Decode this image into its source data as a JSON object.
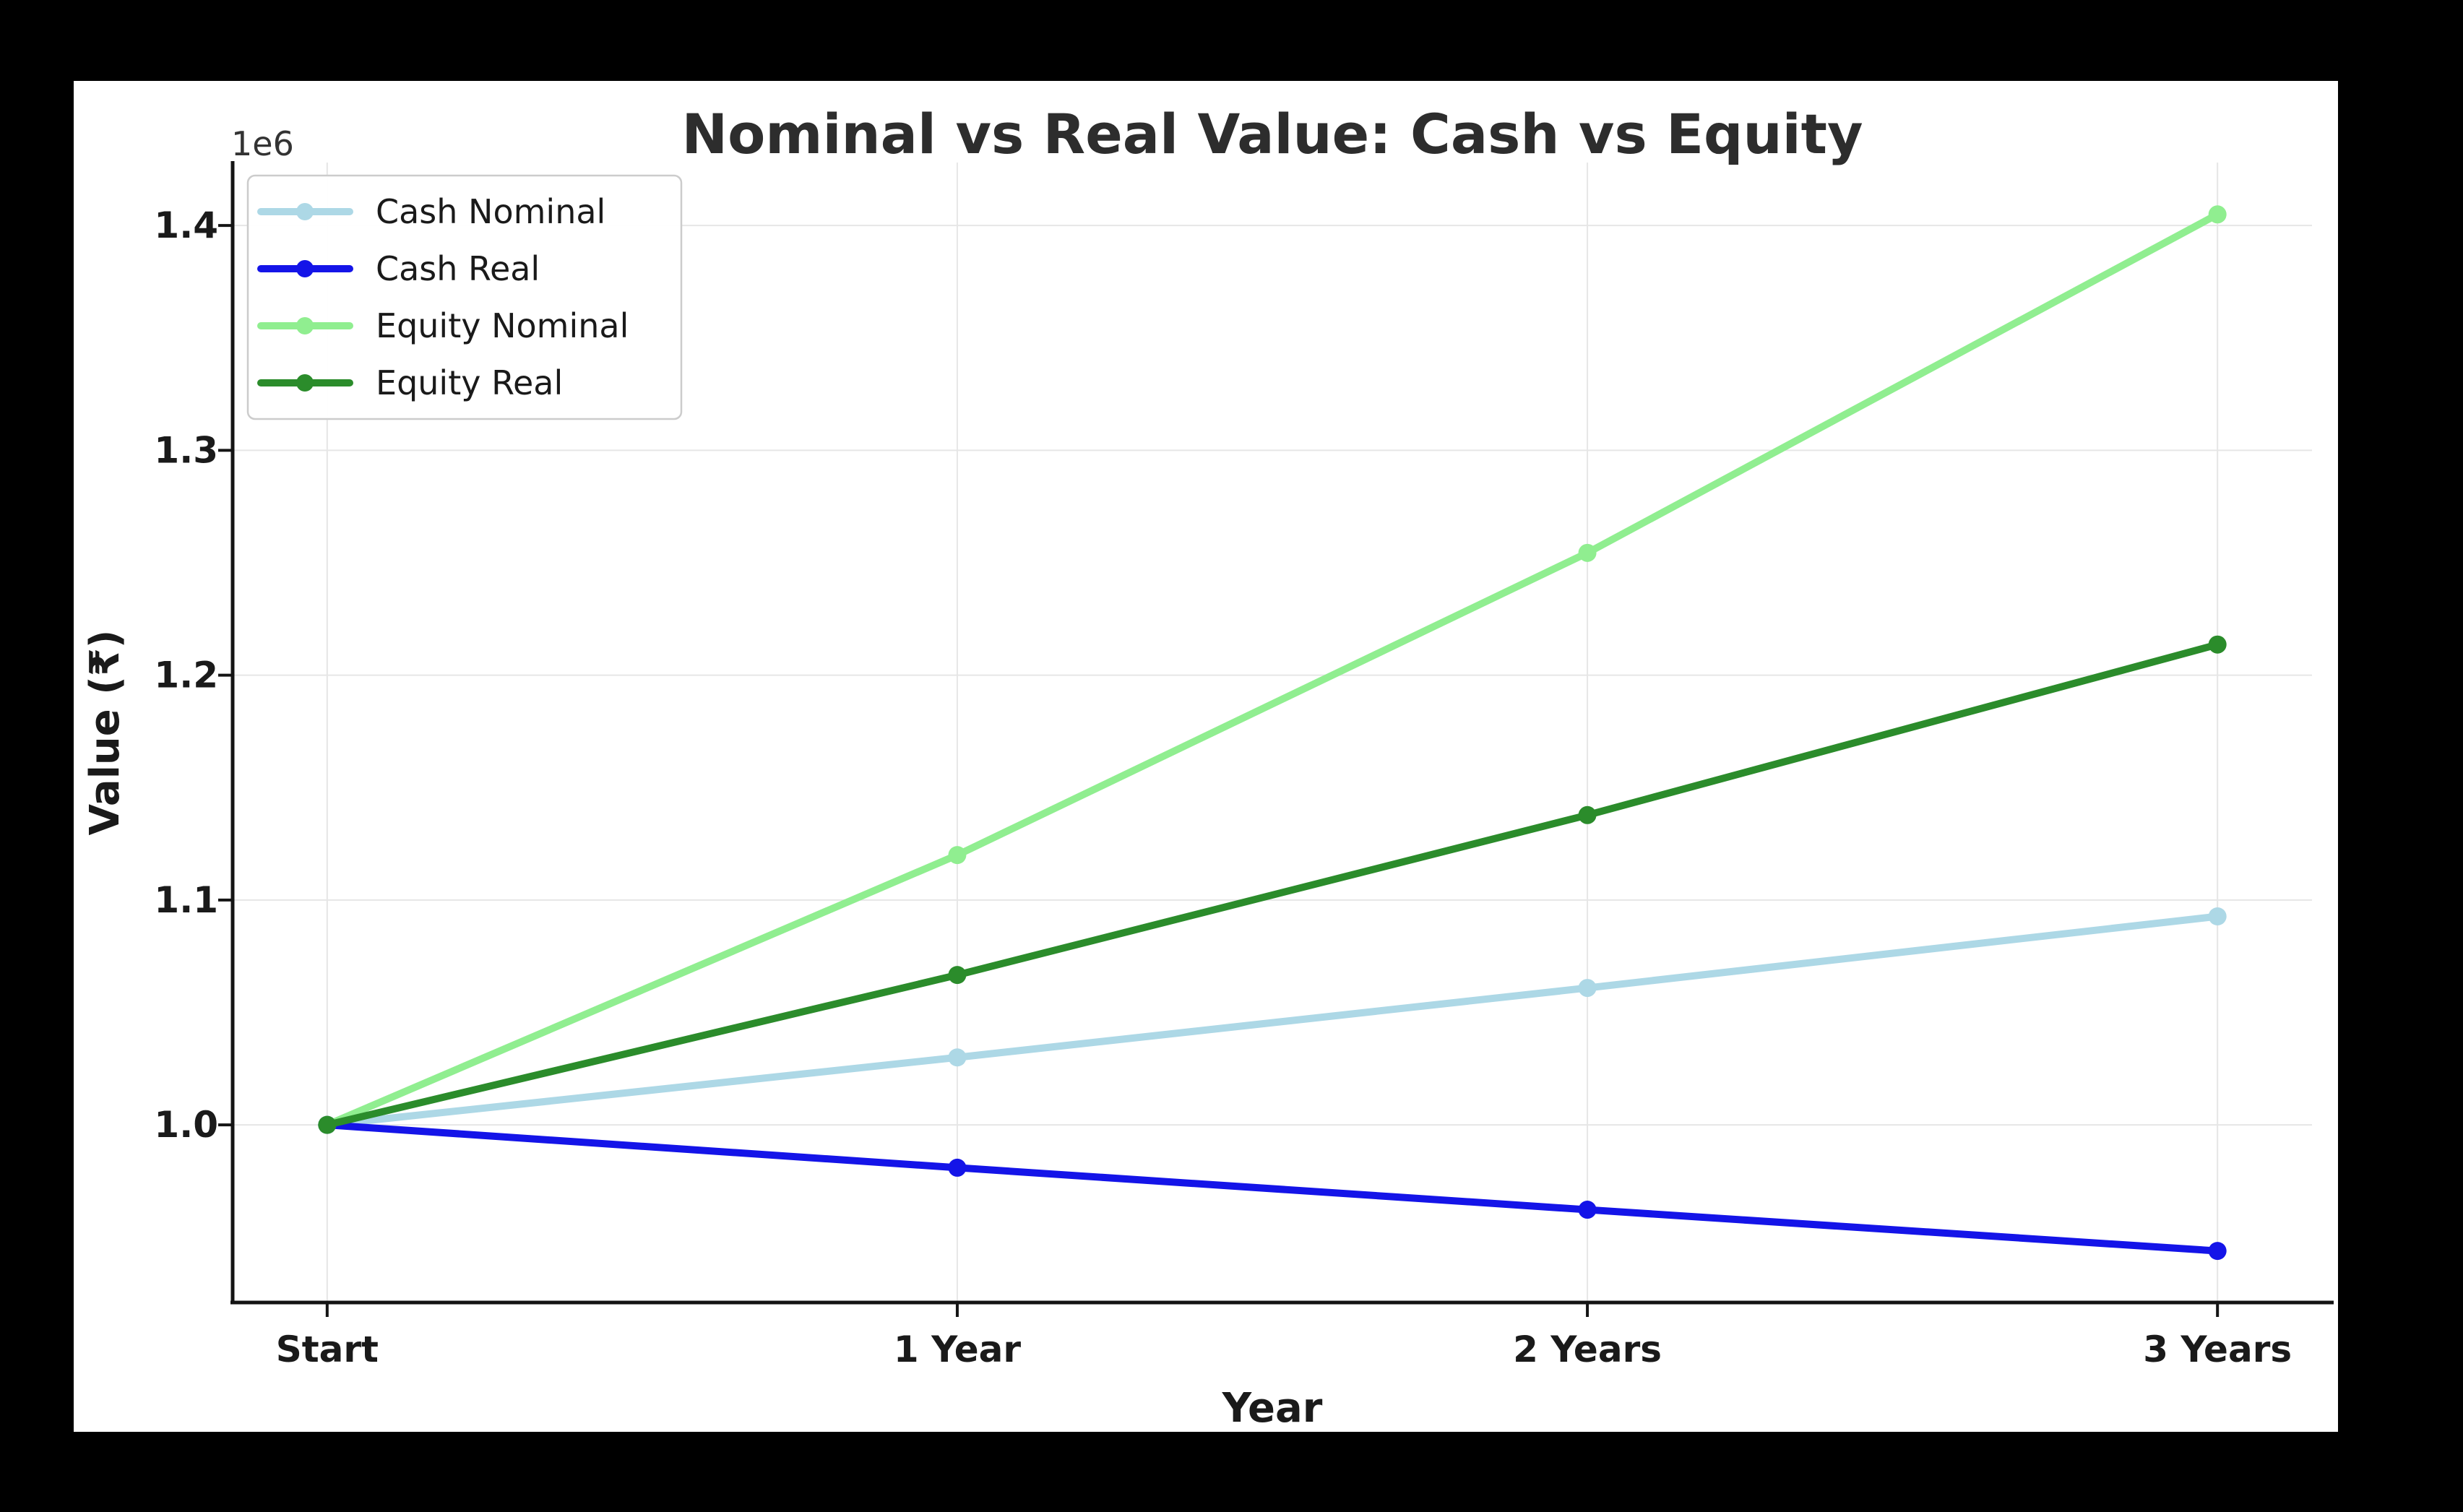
{
  "figure": {
    "title": "Nominal vs Real Value: Cash vs Equity",
    "offset_text": "1e6"
  },
  "chart_data": {
    "type": "line",
    "title": "Nominal vs Real Value: Cash vs Equity",
    "xlabel": "Year",
    "ylabel": "Value (₹)",
    "categories": [
      "Start",
      "1 Year",
      "2 Years",
      "3 Years"
    ],
    "series": [
      {
        "name": "Cash Nominal",
        "color": "#ADD8E6",
        "values": [
          1000000,
          1030000,
          1060900,
          1092727
        ]
      },
      {
        "name": "Cash Real",
        "color": "#1414E8",
        "values": [
          1000000,
          980952,
          962268,
          943936
        ]
      },
      {
        "name": "Equity Nominal",
        "color": "#90EE90",
        "values": [
          1000000,
          1120000,
          1254400,
          1404928
        ]
      },
      {
        "name": "Equity Real",
        "color": "#2B8C2B",
        "values": [
          1000000,
          1066667,
          1137778,
          1213628
        ]
      }
    ],
    "ylim": [
      921000,
      1428000
    ],
    "yticks": [
      1000000,
      1100000,
      1200000,
      1300000,
      1400000
    ],
    "ytick_labels": [
      "1.0",
      "1.1",
      "1.2",
      "1.3",
      "1.4"
    ],
    "y_offset_label": "1e6",
    "grid": true,
    "legend_position": "upper left",
    "line_width": 10,
    "marker": "circle",
    "marker_size": 25
  },
  "style": {
    "background": "#000000",
    "panel": "#ffffff",
    "grid_color": "#e6e6e6",
    "spine_color": "#141414",
    "text_color": "#1a1a1a",
    "title_color": "#2d2d2d",
    "legend_border": "#cccccc"
  }
}
